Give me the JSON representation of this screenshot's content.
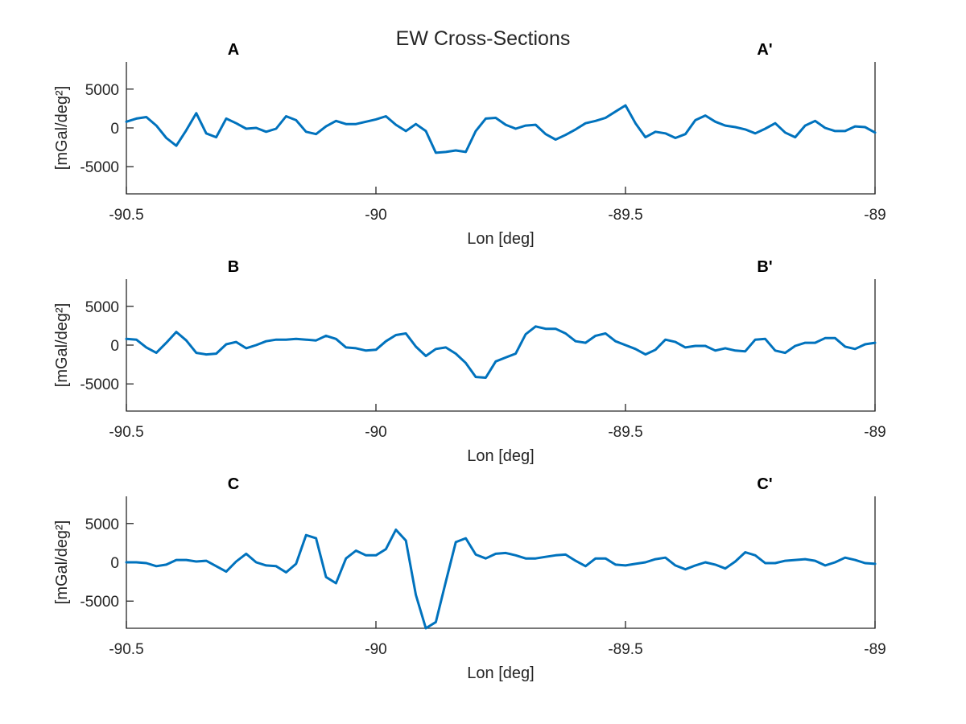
{
  "figure_title": "EW Cross-Sections",
  "colors": {
    "series": "#0072BD",
    "axis": "#262626"
  },
  "chart_data": [
    {
      "type": "line",
      "left_label": "A",
      "right_label": "A'",
      "xlabel": "Lon [deg]",
      "ylabel": "[mGal/deg²]",
      "xlim": [
        -90.5,
        -89
      ],
      "ylim": [
        -8500,
        8500
      ],
      "xticks": [
        -90.5,
        -90,
        -89.5,
        -89
      ],
      "xtick_labels": [
        "-90.5",
        "-90",
        "-89.5",
        "-89"
      ],
      "yticks": [
        -5000,
        0,
        5000
      ],
      "ytick_labels": [
        "-5000",
        "0",
        "5000"
      ],
      "x": [
        -90.5,
        -90.48,
        -90.46,
        -90.44,
        -90.42,
        -90.4,
        -90.38,
        -90.36,
        -90.34,
        -90.32,
        -90.3,
        -90.28,
        -90.26,
        -90.24,
        -90.22,
        -90.2,
        -90.18,
        -90.16,
        -90.14,
        -90.12,
        -90.1,
        -90.08,
        -90.06,
        -90.04,
        -90.02,
        -90.0,
        -89.98,
        -89.96,
        -89.94,
        -89.92,
        -89.9,
        -89.88,
        -89.86,
        -89.84,
        -89.82,
        -89.8,
        -89.78,
        -89.76,
        -89.74,
        -89.72,
        -89.7,
        -89.68,
        -89.66,
        -89.64,
        -89.62,
        -89.6,
        -89.58,
        -89.56,
        -89.54,
        -89.52,
        -89.5,
        -89.48,
        -89.46,
        -89.44,
        -89.42,
        -89.4,
        -89.38,
        -89.36,
        -89.34,
        -89.32,
        -89.3,
        -89.28,
        -89.26,
        -89.24,
        -89.22,
        -89.2,
        -89.18,
        -89.16,
        -89.14,
        -89.12,
        -89.1,
        -89.08,
        -89.06,
        -89.04,
        -89.02,
        -89.0
      ],
      "series": [
        {
          "values": [
            800,
            1200,
            1400,
            300,
            -1300,
            -2300,
            -300,
            1900,
            -700,
            -1200,
            1200,
            600,
            -100,
            0,
            -500,
            -100,
            1500,
            1000,
            -500,
            -800,
            200,
            900,
            500,
            500,
            800,
            1100,
            1500,
            400,
            -400,
            500,
            -400,
            -3200,
            -3100,
            -2900,
            -3100,
            -400,
            1200,
            1300,
            400,
            -100,
            300,
            400,
            -800,
            -1500,
            -900,
            -200,
            600,
            900,
            1300,
            2100,
            2900,
            600,
            -1200,
            -500,
            -700,
            -1300,
            -800,
            1000,
            1600,
            800,
            300,
            100,
            -200,
            -700,
            -100,
            600,
            -600,
            -1200,
            300,
            900,
            0,
            -400,
            -400,
            200,
            100,
            -600
          ]
        }
      ]
    },
    {
      "type": "line",
      "left_label": "B",
      "right_label": "B'",
      "xlabel": "Lon [deg]",
      "ylabel": "[mGal/deg²]",
      "xlim": [
        -90.5,
        -89
      ],
      "ylim": [
        -8500,
        8500
      ],
      "xticks": [
        -90.5,
        -90,
        -89.5,
        -89
      ],
      "xtick_labels": [
        "-90.5",
        "-90",
        "-89.5",
        "-89"
      ],
      "yticks": [
        -5000,
        0,
        5000
      ],
      "ytick_labels": [
        "-5000",
        "0",
        "5000"
      ],
      "x": [
        -90.5,
        -90.48,
        -90.46,
        -90.44,
        -90.42,
        -90.4,
        -90.38,
        -90.36,
        -90.34,
        -90.32,
        -90.3,
        -90.28,
        -90.26,
        -90.24,
        -90.22,
        -90.2,
        -90.18,
        -90.16,
        -90.14,
        -90.12,
        -90.1,
        -90.08,
        -90.06,
        -90.04,
        -90.02,
        -90.0,
        -89.98,
        -89.96,
        -89.94,
        -89.92,
        -89.9,
        -89.88,
        -89.86,
        -89.84,
        -89.82,
        -89.8,
        -89.78,
        -89.76,
        -89.74,
        -89.72,
        -89.7,
        -89.68,
        -89.66,
        -89.64,
        -89.62,
        -89.6,
        -89.58,
        -89.56,
        -89.54,
        -89.52,
        -89.5,
        -89.48,
        -89.46,
        -89.44,
        -89.42,
        -89.4,
        -89.38,
        -89.36,
        -89.34,
        -89.32,
        -89.3,
        -89.28,
        -89.26,
        -89.24,
        -89.22,
        -89.2,
        -89.18,
        -89.16,
        -89.14,
        -89.12,
        -89.1,
        -89.08,
        -89.06,
        -89.04,
        -89.02,
        -89.0
      ],
      "series": [
        {
          "values": [
            800,
            700,
            -300,
            -1000,
            300,
            1700,
            600,
            -1000,
            -1200,
            -1100,
            100,
            400,
            -400,
            0,
            500,
            700,
            700,
            800,
            700,
            600,
            1200,
            800,
            -300,
            -400,
            -700,
            -600,
            500,
            1300,
            1500,
            -200,
            -1400,
            -500,
            -300,
            -1100,
            -2300,
            -4100,
            -4200,
            -2100,
            -1600,
            -1100,
            1400,
            2400,
            2100,
            2100,
            1500,
            500,
            300,
            1200,
            1500,
            500,
            0,
            -500,
            -1200,
            -600,
            700,
            400,
            -300,
            -100,
            -100,
            -700,
            -400,
            -700,
            -800,
            700,
            800,
            -700,
            -1000,
            -100,
            300,
            300,
            900,
            900,
            -200,
            -500,
            100,
            300
          ]
        }
      ]
    },
    {
      "type": "line",
      "left_label": "C",
      "right_label": "C'",
      "xlabel": "Lon [deg]",
      "ylabel": "[mGal/deg²]",
      "xlim": [
        -90.5,
        -89
      ],
      "ylim": [
        -8500,
        8500
      ],
      "xticks": [
        -90.5,
        -90,
        -89.5,
        -89
      ],
      "xtick_labels": [
        "-90.5",
        "-90",
        "-89.5",
        "-89"
      ],
      "yticks": [
        -5000,
        0,
        5000
      ],
      "ytick_labels": [
        "-5000",
        "0",
        "5000"
      ],
      "x": [
        -90.5,
        -90.48,
        -90.46,
        -90.44,
        -90.42,
        -90.4,
        -90.38,
        -90.36,
        -90.34,
        -90.32,
        -90.3,
        -90.28,
        -90.26,
        -90.24,
        -90.22,
        -90.2,
        -90.18,
        -90.16,
        -90.14,
        -90.12,
        -90.1,
        -90.08,
        -90.06,
        -90.04,
        -90.02,
        -90.0,
        -89.98,
        -89.96,
        -89.94,
        -89.92,
        -89.9,
        -89.88,
        -89.86,
        -89.84,
        -89.82,
        -89.8,
        -89.78,
        -89.76,
        -89.74,
        -89.72,
        -89.7,
        -89.68,
        -89.66,
        -89.64,
        -89.62,
        -89.6,
        -89.58,
        -89.56,
        -89.54,
        -89.52,
        -89.5,
        -89.48,
        -89.46,
        -89.44,
        -89.42,
        -89.4,
        -89.38,
        -89.36,
        -89.34,
        -89.32,
        -89.3,
        -89.28,
        -89.26,
        -89.24,
        -89.22,
        -89.2,
        -89.18,
        -89.16,
        -89.14,
        -89.12,
        -89.1,
        -89.08,
        -89.06,
        -89.04,
        -89.02,
        -89.0
      ],
      "series": [
        {
          "values": [
            0,
            0,
            -100,
            -500,
            -300,
            300,
            300,
            100,
            200,
            -500,
            -1200,
            100,
            1100,
            0,
            -400,
            -500,
            -1300,
            -200,
            3500,
            3100,
            -1900,
            -2700,
            500,
            1500,
            900,
            900,
            1700,
            4200,
            2800,
            -4200,
            -8500,
            -7700,
            -2500,
            2600,
            3100,
            1000,
            500,
            1100,
            1200,
            900,
            500,
            500,
            700,
            900,
            1000,
            200,
            -500,
            500,
            500,
            -300,
            -400,
            -200,
            0,
            400,
            600,
            -400,
            -900,
            -400,
            0,
            -300,
            -800,
            100,
            1300,
            900,
            -100,
            -100,
            200,
            300,
            400,
            200,
            -400,
            0,
            600,
            300,
            -100,
            -200
          ]
        }
      ]
    }
  ]
}
